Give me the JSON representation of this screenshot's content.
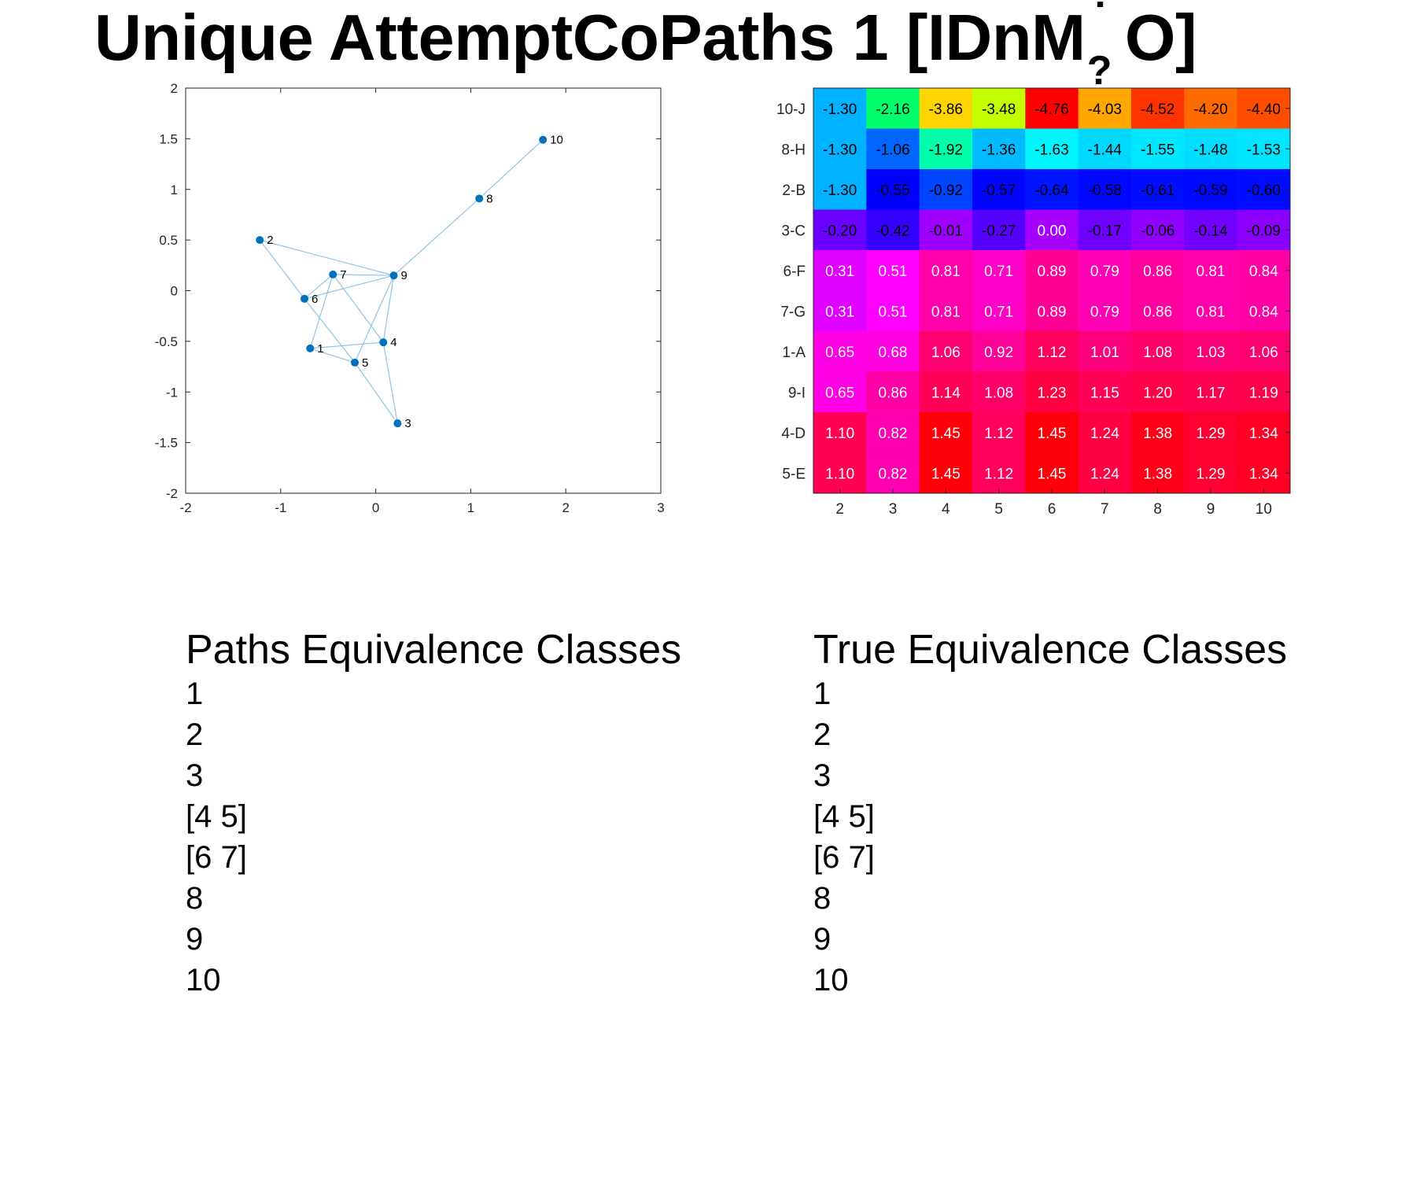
{
  "title": {
    "prefix": "Unique AttemptCoPaths 1 [IDnM",
    "q_top": "?",
    "q_bottom": "?",
    "suffix": "O]"
  },
  "chart_data": [
    {
      "type": "scatter",
      "title": "",
      "xlabel": "",
      "ylabel": "",
      "xlim": [
        -2,
        3
      ],
      "ylim": [
        -2,
        2
      ],
      "xticks": [
        -2,
        -1,
        0,
        1,
        2,
        3
      ],
      "yticks": [
        -2,
        -1.5,
        -1,
        -0.5,
        0,
        0.5,
        1,
        1.5,
        2
      ],
      "xtick_labels": [
        "-2",
        "-1",
        "0",
        "1",
        "2",
        "3"
      ],
      "ytick_labels": [
        "-2",
        "-1.5",
        "-1",
        "-0.5",
        "0",
        "0.5",
        "1",
        "1.5",
        "2"
      ],
      "grid": false,
      "point_color": "#0072BD",
      "edge_color": "#8EC4E6",
      "nodes": [
        {
          "id": "1",
          "x": -0.69,
          "y": -0.57
        },
        {
          "id": "2",
          "x": -1.22,
          "y": 0.5
        },
        {
          "id": "3",
          "x": 0.23,
          "y": -1.31
        },
        {
          "id": "4",
          "x": 0.08,
          "y": -0.51
        },
        {
          "id": "5",
          "x": -0.22,
          "y": -0.71
        },
        {
          "id": "6",
          "x": -0.75,
          "y": -0.08
        },
        {
          "id": "7",
          "x": -0.45,
          "y": 0.16
        },
        {
          "id": "8",
          "x": 1.09,
          "y": 0.91
        },
        {
          "id": "9",
          "x": 0.19,
          "y": 0.15
        },
        {
          "id": "10",
          "x": 1.76,
          "y": 1.49
        }
      ],
      "edges": [
        [
          "2",
          "6"
        ],
        [
          "2",
          "9"
        ],
        [
          "6",
          "9"
        ],
        [
          "6",
          "7"
        ],
        [
          "6",
          "5"
        ],
        [
          "7",
          "9"
        ],
        [
          "7",
          "1"
        ],
        [
          "7",
          "4"
        ],
        [
          "1",
          "4"
        ],
        [
          "1",
          "5"
        ],
        [
          "5",
          "9"
        ],
        [
          "5",
          "3"
        ],
        [
          "4",
          "9"
        ],
        [
          "4",
          "3"
        ],
        [
          "9",
          "8"
        ],
        [
          "8",
          "10"
        ]
      ]
    },
    {
      "type": "heatmap",
      "title": "",
      "xlabel": "",
      "ylabel": "",
      "x": [
        "2",
        "3",
        "4",
        "5",
        "6",
        "7",
        "8",
        "9",
        "10"
      ],
      "y": [
        "10-J",
        "8-H",
        "2-B",
        "3-C",
        "6-F",
        "7-G",
        "1-A",
        "9-I",
        "4-D",
        "5-E"
      ],
      "values": [
        [
          "-1.30",
          "-2.16",
          "-3.86",
          "-3.48",
          "-4.76",
          "-4.03",
          "-4.52",
          "-4.20",
          "-4.40"
        ],
        [
          "-1.30",
          "-1.06",
          "-1.92",
          "-1.36",
          "-1.63",
          "-1.44",
          "-1.55",
          "-1.48",
          "-1.53"
        ],
        [
          "-1.30",
          "-0.55",
          "-0.92",
          "-0.57",
          "-0.64",
          "-0.58",
          "-0.61",
          "-0.59",
          "-0.60"
        ],
        [
          "-0.20",
          "-0.42",
          "-0.01",
          "-0.27",
          "0.00",
          "-0.17",
          "-0.06",
          "-0.14",
          "-0.09"
        ],
        [
          "0.31",
          "0.51",
          "0.81",
          "0.71",
          "0.89",
          "0.79",
          "0.86",
          "0.81",
          "0.84"
        ],
        [
          "0.31",
          "0.51",
          "0.81",
          "0.71",
          "0.89",
          "0.79",
          "0.86",
          "0.81",
          "0.84"
        ],
        [
          "0.65",
          "0.68",
          "1.06",
          "0.92",
          "1.12",
          "1.01",
          "1.08",
          "1.03",
          "1.06"
        ],
        [
          "0.65",
          "0.86",
          "1.14",
          "1.08",
          "1.23",
          "1.15",
          "1.20",
          "1.17",
          "1.19"
        ],
        [
          "1.10",
          "0.82",
          "1.45",
          "1.12",
          "1.45",
          "1.24",
          "1.38",
          "1.29",
          "1.34"
        ],
        [
          "1.10",
          "0.82",
          "1.45",
          "1.12",
          "1.45",
          "1.24",
          "1.38",
          "1.29",
          "1.34"
        ]
      ],
      "colors": [
        [
          "#00B2FF",
          "#00FF6A",
          "#FFD500",
          "#C4FF00",
          "#FF0000",
          "#FFA600",
          "#FF3300",
          "#FF6A00",
          "#FF4D00"
        ],
        [
          "#00B2FF",
          "#0066FF",
          "#00FFAA",
          "#00BBFF",
          "#00F5FF",
          "#00D9FF",
          "#00E8FF",
          "#00DDFF",
          "#00E5FF"
        ],
        [
          "#00B2FF",
          "#0000FF",
          "#0044FF",
          "#0005FF",
          "#0015FF",
          "#0008FF",
          "#000EFF",
          "#0009FF",
          "#000CFF"
        ],
        [
          "#6A00FF",
          "#3600FF",
          "#9E00FF",
          "#5600FF",
          "#A600FF",
          "#6F00FF",
          "#8F00FF",
          "#7200FF",
          "#8900FF"
        ],
        [
          "#E000FF",
          "#FF00FF",
          "#FF00AA",
          "#FF00C6",
          "#FF0095",
          "#FF00B4",
          "#FF009F",
          "#FF00AA",
          "#FF00A4"
        ],
        [
          "#E000FF",
          "#FF00FF",
          "#FF00AA",
          "#FF00C6",
          "#FF0095",
          "#FF00B4",
          "#FF009F",
          "#FF00AA",
          "#FF00A4"
        ],
        [
          "#FF00E6",
          "#FF00E0",
          "#FF006F",
          "#FF0099",
          "#FF005C",
          "#FF007C",
          "#FF0068",
          "#FF0077",
          "#FF006F"
        ],
        [
          "#FF00E6",
          "#FF00A6",
          "#FF0058",
          "#FF0068",
          "#FF0040",
          "#FF0055",
          "#FF0049",
          "#FF0050",
          "#FF004B"
        ],
        [
          "#FF0052",
          "#FF00B0",
          "#FF000A",
          "#FF005C",
          "#FF000A",
          "#FF0042",
          "#FF0019",
          "#FF0033",
          "#FF0024"
        ],
        [
          "#FF0052",
          "#FF00B0",
          "#FF000A",
          "#FF005C",
          "#FF000A",
          "#FF0042",
          "#FF0019",
          "#FF0033",
          "#FF0024"
        ]
      ],
      "text_dark_rows": [
        "10-J",
        "8-H",
        "2-B",
        "3-C"
      ],
      "text_light_cells": [
        [
          3,
          4
        ]
      ]
    }
  ],
  "paths_classes": {
    "title": "Paths Equivalence Classes",
    "items": [
      "1",
      "2",
      "3",
      "[4 5]",
      "[6 7]",
      "8",
      "9",
      "10"
    ]
  },
  "true_classes": {
    "title": "True Equivalence Classes",
    "items": [
      "1",
      "2",
      "3",
      "[4 5]",
      "[6 7]",
      "8",
      "9",
      "10"
    ]
  }
}
